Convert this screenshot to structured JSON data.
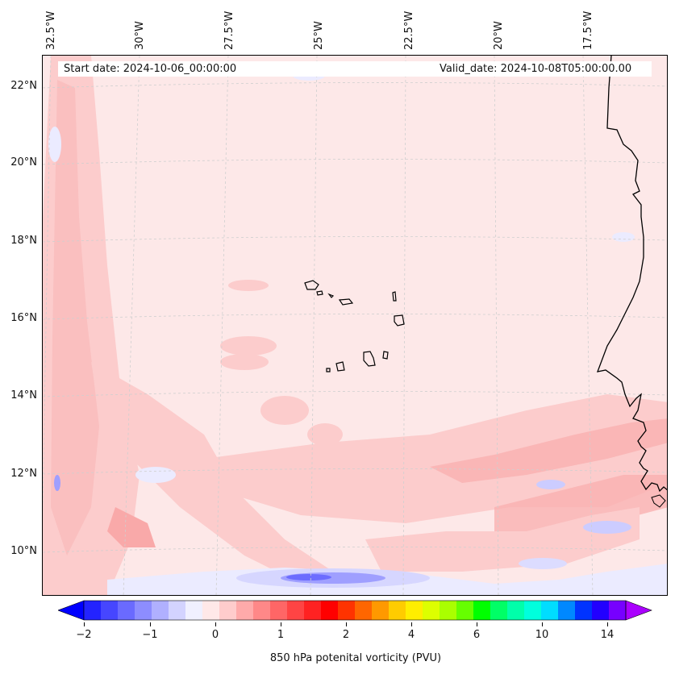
{
  "map": {
    "start_date": "Start date: 2024-10-06_00:00:00",
    "valid_date": "Valid_date: 2024-10-08T05:00:00.00",
    "lon_labels": [
      "32.5°W",
      "30°W",
      "27.5°W",
      "25°W",
      "22.5°W",
      "20°W",
      "17.5°W"
    ],
    "lat_labels": [
      "22°N",
      "20°N",
      "18°N",
      "16°N",
      "14°N",
      "12°N",
      "10°N"
    ],
    "gridlines": "on",
    "background_fill": "#fde8e8"
  },
  "colorbar": {
    "label": "850 hPa potenital vorticity (PVU)",
    "tick_labels": [
      "−2",
      "−1",
      "0",
      "1",
      "2",
      "4",
      "6",
      "10",
      "14"
    ],
    "colors": [
      "#0000ff",
      "#2323ff",
      "#4646ff",
      "#6a6aff",
      "#8d8dff",
      "#b0b0ff",
      "#d3d3ff",
      "#f0f0ff",
      "#ffe8e8",
      "#ffcccc",
      "#ffaaaa",
      "#ff8888",
      "#ff6666",
      "#ff4444",
      "#ff2222",
      "#ff0000",
      "#ff3300",
      "#ff6600",
      "#ff9900",
      "#ffcc00",
      "#ffee00",
      "#ddff00",
      "#aaff00",
      "#66ff00",
      "#00ff00",
      "#00ff66",
      "#00ffaa",
      "#00ffdd",
      "#00ddff",
      "#0088ff",
      "#0033ff",
      "#2200ff",
      "#7700ff",
      "#aa00ff"
    ],
    "extend": "both"
  }
}
